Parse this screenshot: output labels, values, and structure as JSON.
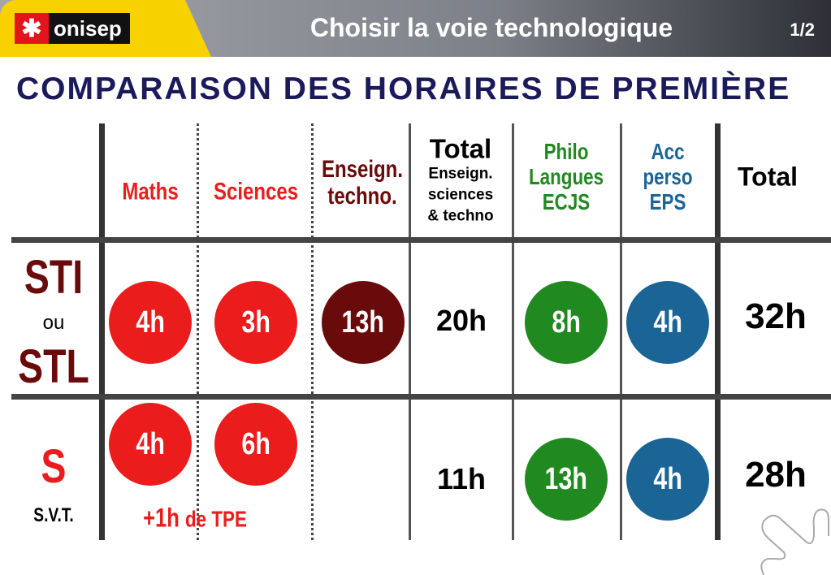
{
  "header": {
    "logo": "onisep",
    "title": "Choisir la voie technologique",
    "page": "1/2"
  },
  "heading": "COMPARAISON DES HORAIRES DE PREMIÈRE",
  "columns": {
    "maths": "Maths",
    "sciences": "Sciences",
    "enseign_1": "Enseign.",
    "enseign_2": "techno.",
    "total_title": "Total",
    "total_sub1": "Enseign.",
    "total_sub2": "sciences",
    "total_sub3": "& techno",
    "philo": "Philo",
    "langues": "Langues",
    "ecjs": "ECJS",
    "acc": "Acc",
    "perso": "perso",
    "eps": "EPS",
    "total": "Total"
  },
  "rows": [
    {
      "label_1": "STI",
      "label_mid": "ou",
      "label_2": "STL",
      "maths": "4h",
      "sciences": "3h",
      "techno": "13h",
      "total_sci": "20h",
      "philo": "8h",
      "acc": "4h",
      "total": "32h"
    },
    {
      "label_1": "S",
      "label_2": "S.V.T.",
      "maths": "4h",
      "sciences": "6h",
      "tpe_1": "+1h",
      "tpe_2": "de TPE",
      "total_sci": "11h",
      "philo": "13h",
      "acc": "4h",
      "total": "28h"
    }
  ],
  "colors": {
    "red": "#ea1c1c",
    "dark_red": "#6a0b0b",
    "green": "#20891f",
    "blue": "#1a6496",
    "navy": "#1b1a5a"
  }
}
